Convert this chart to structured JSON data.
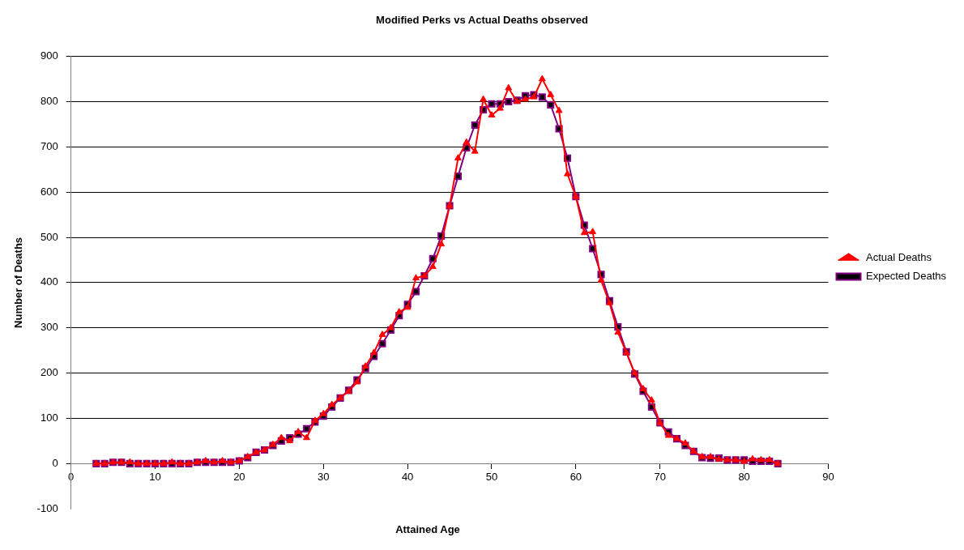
{
  "chart_data": {
    "type": "line",
    "title": "Modified Perks vs Actual Deaths observed",
    "xlabel": "Attained Age",
    "ylabel": "Number of Deaths",
    "x": [
      3,
      4,
      5,
      6,
      7,
      8,
      9,
      10,
      11,
      12,
      13,
      14,
      15,
      16,
      17,
      18,
      19,
      20,
      21,
      22,
      23,
      24,
      25,
      26,
      27,
      28,
      29,
      30,
      31,
      32,
      33,
      34,
      35,
      36,
      37,
      38,
      39,
      40,
      41,
      42,
      43,
      44,
      45,
      46,
      47,
      48,
      49,
      50,
      51,
      52,
      53,
      54,
      55,
      56,
      57,
      58,
      59,
      60,
      61,
      62,
      63,
      64,
      65,
      66,
      67,
      68,
      69,
      70,
      71,
      72,
      73,
      74,
      75,
      76,
      77,
      78,
      79,
      80,
      81,
      82,
      83,
      84
    ],
    "series": [
      {
        "name": "Actual Deaths",
        "color": "#ff0000",
        "marker": "triangle",
        "values": [
          0,
          0,
          3,
          3,
          3,
          0,
          0,
          0,
          0,
          3,
          0,
          0,
          3,
          6,
          3,
          6,
          3,
          6,
          15,
          25,
          30,
          42,
          57,
          50,
          70,
          57,
          95,
          110,
          130,
          145,
          160,
          180,
          215,
          245,
          285,
          300,
          335,
          345,
          410,
          415,
          435,
          485,
          570,
          675,
          710,
          690,
          805,
          770,
          785,
          830,
          800,
          805,
          810,
          850,
          815,
          780,
          640,
          590,
          510,
          512,
          405,
          355,
          290,
          245,
          200,
          165,
          140,
          90,
          62,
          55,
          45,
          27,
          15,
          15,
          10,
          8,
          8,
          5,
          10,
          8,
          8,
          0
        ]
      },
      {
        "name": "Expected Deaths",
        "color": "#800080",
        "marker": "square",
        "values": [
          0,
          0,
          3,
          3,
          0,
          0,
          0,
          0,
          0,
          0,
          0,
          0,
          3,
          3,
          3,
          3,
          3,
          6,
          13,
          25,
          30,
          40,
          50,
          57,
          65,
          77,
          92,
          105,
          125,
          145,
          162,
          185,
          210,
          237,
          265,
          295,
          327,
          352,
          380,
          415,
          453,
          503,
          570,
          635,
          698,
          748,
          782,
          795,
          795,
          800,
          803,
          813,
          815,
          810,
          793,
          740,
          675,
          590,
          527,
          475,
          418,
          360,
          302,
          247,
          198,
          160,
          125,
          90,
          70,
          55,
          40,
          27,
          13,
          12,
          12,
          8,
          8,
          8,
          5,
          5,
          5,
          0
        ]
      }
    ],
    "xlim": [
      0,
      90
    ],
    "xticks": [
      0,
      10,
      20,
      30,
      40,
      50,
      60,
      70,
      80,
      90
    ],
    "ylim": [
      -100,
      900
    ],
    "yticks": [
      -100,
      0,
      100,
      200,
      300,
      400,
      500,
      600,
      700,
      800,
      900
    ],
    "grid": "y",
    "legend": "right"
  }
}
